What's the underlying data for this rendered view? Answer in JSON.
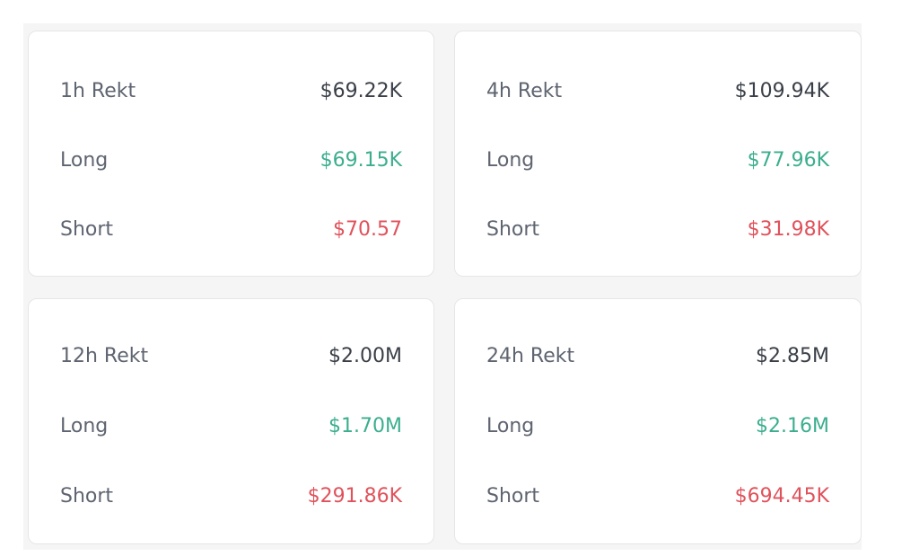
{
  "colors": {
    "long": "#3cae8e",
    "short": "#e0525b",
    "label": "#5e6470",
    "value": "#3a3f47"
  },
  "cards": [
    {
      "title": "1h Rekt",
      "total": "$69.22K",
      "long_label": "Long",
      "long_value": "$69.15K",
      "short_label": "Short",
      "short_value": "$70.57"
    },
    {
      "title": "4h Rekt",
      "total": "$109.94K",
      "long_label": "Long",
      "long_value": "$77.96K",
      "short_label": "Short",
      "short_value": "$31.98K"
    },
    {
      "title": "12h Rekt",
      "total": "$2.00M",
      "long_label": "Long",
      "long_value": "$1.70M",
      "short_label": "Short",
      "short_value": "$291.86K"
    },
    {
      "title": "24h Rekt",
      "total": "$2.85M",
      "long_label": "Long",
      "long_value": "$2.16M",
      "short_label": "Short",
      "short_value": "$694.45K"
    }
  ]
}
